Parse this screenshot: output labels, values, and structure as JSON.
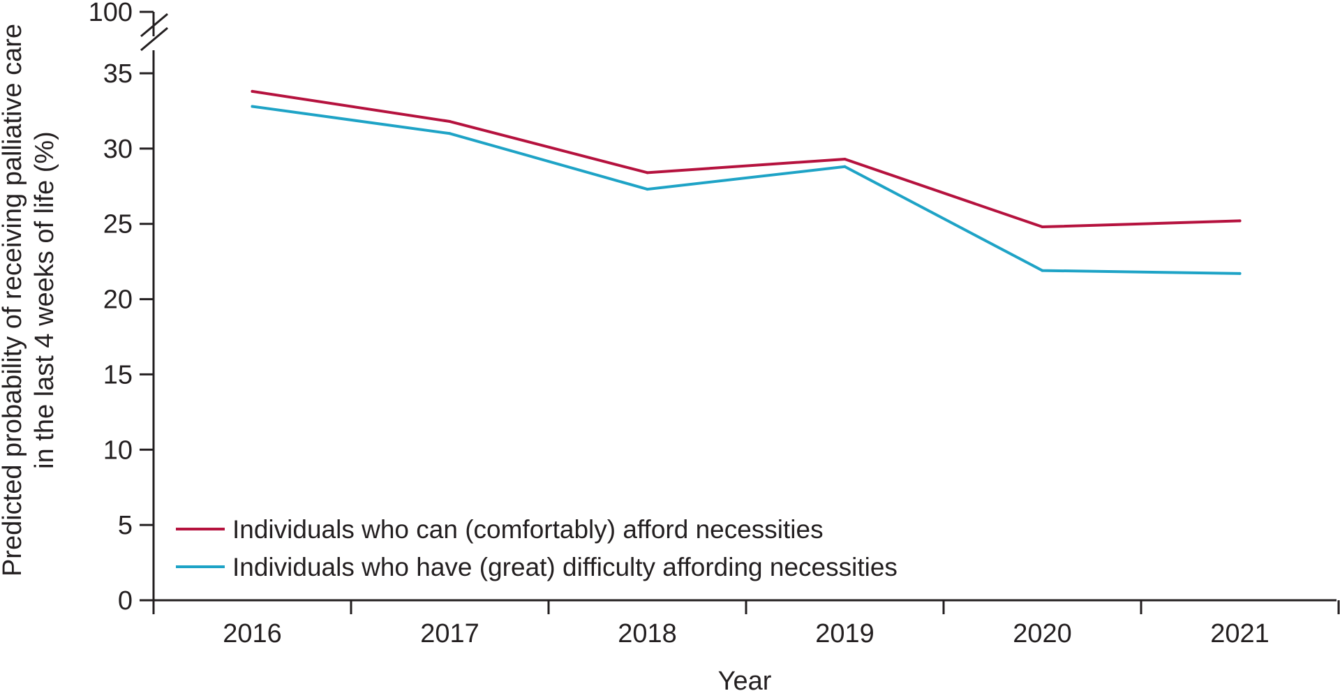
{
  "chart_data": {
    "type": "line",
    "title": "",
    "xlabel": "Year",
    "ylabel": [
      "Predicted probability of receiving palliative care",
      "in the last 4 weeks of life (%)"
    ],
    "categories": [
      "2016",
      "2017",
      "2018",
      "2019",
      "2020",
      "2021"
    ],
    "y_ticks": [
      0,
      5,
      10,
      15,
      20,
      25,
      30,
      35
    ],
    "y_break_label": "100",
    "ylim": [
      0,
      35
    ],
    "series": [
      {
        "name": "Individuals who can (comfortably) afford necessities",
        "color": "#b5123e",
        "values": [
          33.8,
          31.8,
          28.4,
          29.3,
          24.8,
          25.2
        ]
      },
      {
        "name": "Individuals who have (great) difficulty affording necessities",
        "color": "#1ea3c6",
        "values": [
          32.8,
          31.0,
          27.3,
          28.8,
          21.9,
          21.7
        ]
      }
    ],
    "legend_position": "bottom-left",
    "axis_color": "#231f20"
  }
}
